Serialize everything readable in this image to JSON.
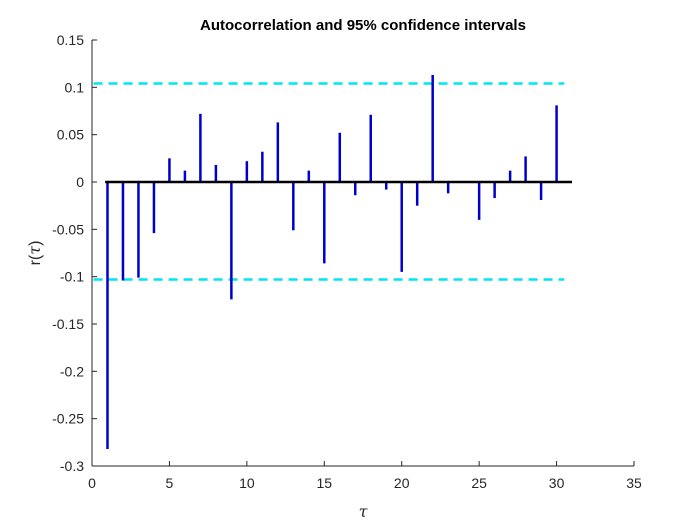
{
  "chart_data": {
    "type": "stem",
    "title": "Autocorrelation and 95% confidence intervals",
    "xlabel": "τ",
    "ylabel_prefix": "r(",
    "ylabel_symbol": "τ",
    "ylabel_suffix": ")",
    "xlim": [
      0,
      35
    ],
    "ylim": [
      -0.3,
      0.15
    ],
    "x_ticks": [
      0,
      5,
      10,
      15,
      20,
      25,
      30,
      35
    ],
    "x_tick_labels": [
      "0",
      "5",
      "10",
      "15",
      "20",
      "25",
      "30",
      "35"
    ],
    "y_ticks": [
      0.15,
      0.1,
      0.05,
      0,
      -0.05,
      -0.1,
      -0.15,
      -0.2,
      -0.25,
      -0.3
    ],
    "y_tick_labels": [
      "0.15",
      "0.1",
      "0.05",
      "0",
      "-0.05",
      "-0.1",
      "-0.15",
      "-0.2",
      "-0.25",
      "-0.3"
    ],
    "lags": [
      1,
      2,
      3,
      4,
      5,
      6,
      7,
      8,
      9,
      10,
      11,
      12,
      13,
      14,
      15,
      16,
      17,
      18,
      19,
      20,
      21,
      22,
      23,
      24,
      25,
      26,
      27,
      28,
      29,
      30
    ],
    "values": [
      -0.282,
      -0.104,
      -0.101,
      -0.054,
      0.025,
      0.012,
      0.072,
      0.018,
      -0.124,
      0.022,
      0.032,
      0.063,
      -0.051,
      0.012,
      -0.086,
      0.052,
      -0.014,
      0.071,
      -0.008,
      -0.095,
      -0.025,
      0.113,
      -0.012,
      0.0,
      -0.04,
      -0.017,
      0.012,
      0.027,
      -0.019,
      0.081
    ],
    "confidence_upper": 0.104,
    "confidence_lower": -0.103,
    "baseline_x_range": [
      1,
      31
    ],
    "grid": false,
    "colors": {
      "stem": "#0000cc",
      "confidence": "#00e5ee",
      "baseline": "#000000",
      "axis": "#262626"
    }
  }
}
